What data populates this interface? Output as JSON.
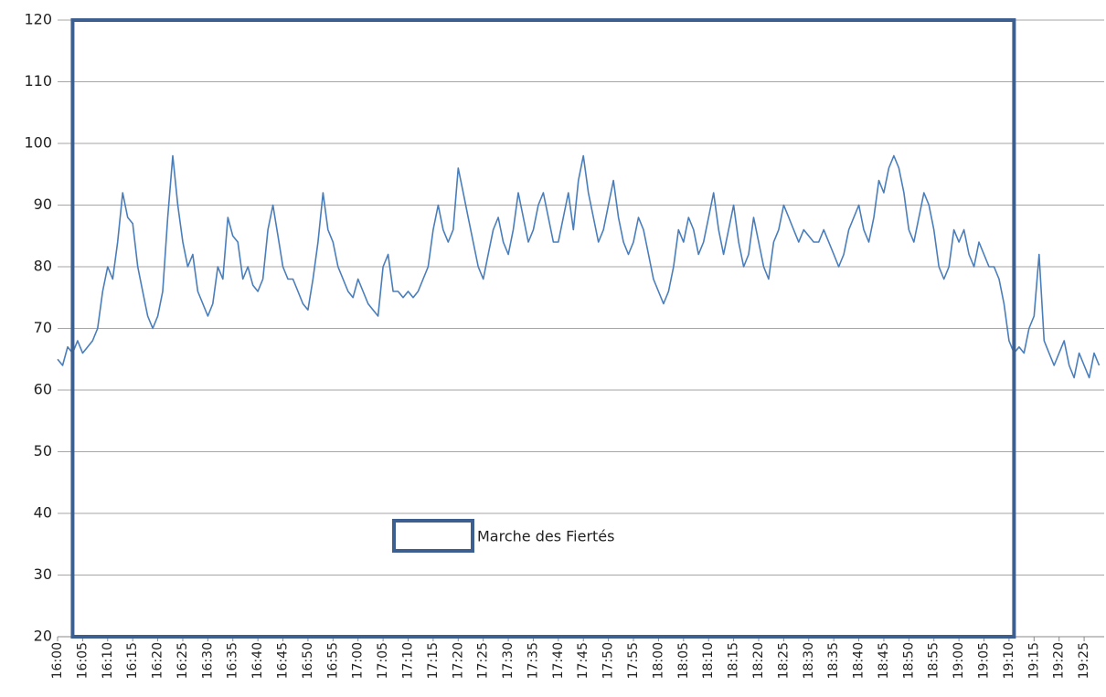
{
  "chart_data": {
    "type": "line",
    "x": [
      "16:00",
      "16:01",
      "16:02",
      "16:03",
      "16:04",
      "16:05",
      "16:06",
      "16:07",
      "16:08",
      "16:09",
      "16:10",
      "16:11",
      "16:12",
      "16:13",
      "16:14",
      "16:15",
      "16:16",
      "16:17",
      "16:18",
      "16:19",
      "16:20",
      "16:21",
      "16:22",
      "16:23",
      "16:24",
      "16:25",
      "16:26",
      "16:27",
      "16:28",
      "16:29",
      "16:30",
      "16:31",
      "16:32",
      "16:33",
      "16:34",
      "16:35",
      "16:36",
      "16:37",
      "16:38",
      "16:39",
      "16:40",
      "16:41",
      "16:42",
      "16:43",
      "16:44",
      "16:45",
      "16:46",
      "16:47",
      "16:48",
      "16:49",
      "16:50",
      "16:51",
      "16:52",
      "16:53",
      "16:54",
      "16:55",
      "16:56",
      "16:57",
      "16:58",
      "16:59",
      "17:00",
      "17:01",
      "17:02",
      "17:03",
      "17:04",
      "17:05",
      "17:06",
      "17:07",
      "17:08",
      "17:09",
      "17:10",
      "17:11",
      "17:12",
      "17:13",
      "17:14",
      "17:15",
      "17:16",
      "17:17",
      "17:18",
      "17:19",
      "17:20",
      "17:21",
      "17:22",
      "17:23",
      "17:24",
      "17:25",
      "17:26",
      "17:27",
      "17:28",
      "17:29",
      "17:30",
      "17:31",
      "17:32",
      "17:33",
      "17:34",
      "17:35",
      "17:36",
      "17:37",
      "17:38",
      "17:39",
      "17:40",
      "17:41",
      "17:42",
      "17:43",
      "17:44",
      "17:45",
      "17:46",
      "17:47",
      "17:48",
      "17:49",
      "17:50",
      "17:51",
      "17:52",
      "17:53",
      "17:54",
      "17:55",
      "17:56",
      "17:57",
      "17:58",
      "17:59",
      "18:00",
      "18:01",
      "18:02",
      "18:03",
      "18:04",
      "18:05",
      "18:06",
      "18:07",
      "18:08",
      "18:09",
      "18:10",
      "18:11",
      "18:12",
      "18:13",
      "18:14",
      "18:15",
      "18:16",
      "18:17",
      "18:18",
      "18:19",
      "18:20",
      "18:21",
      "18:22",
      "18:23",
      "18:24",
      "18:25",
      "18:26",
      "18:27",
      "18:28",
      "18:29",
      "18:30",
      "18:31",
      "18:32",
      "18:33",
      "18:34",
      "18:35",
      "18:36",
      "18:37",
      "18:38",
      "18:39",
      "18:40",
      "18:41",
      "18:42",
      "18:43",
      "18:44",
      "18:45",
      "18:46",
      "18:47",
      "18:48",
      "18:49",
      "18:50",
      "18:51",
      "18:52",
      "18:53",
      "18:54",
      "18:55",
      "18:56",
      "18:57",
      "18:58",
      "18:59",
      "19:00",
      "19:01",
      "19:02",
      "19:03",
      "19:04",
      "19:05",
      "19:06",
      "19:07",
      "19:08",
      "19:09",
      "19:10",
      "19:11",
      "19:12",
      "19:13",
      "19:14",
      "19:15",
      "19:16",
      "19:17",
      "19:18",
      "19:19",
      "19:20",
      "19:21",
      "19:22",
      "19:23",
      "19:24",
      "19:25",
      "19:26",
      "19:27",
      "19:28"
    ],
    "series": [
      {
        "color": "#4a7ebb",
        "values": [
          65,
          64,
          67,
          66,
          68,
          66,
          67,
          68,
          70,
          76,
          80,
          78,
          84,
          92,
          88,
          87,
          80,
          76,
          72,
          70,
          72,
          76,
          88,
          98,
          90,
          84,
          80,
          82,
          76,
          74,
          72,
          74,
          80,
          78,
          88,
          85,
          84,
          78,
          80,
          77,
          76,
          78,
          86,
          90,
          85,
          80,
          78,
          78,
          76,
          74,
          73,
          78,
          84,
          92,
          86,
          84,
          80,
          78,
          76,
          75,
          78,
          76,
          74,
          73,
          72,
          80,
          82,
          76,
          76,
          75,
          76,
          75,
          76,
          78,
          80,
          86,
          90,
          86,
          84,
          86,
          96,
          92,
          88,
          84,
          80,
          78,
          82,
          86,
          88,
          84,
          82,
          86,
          92,
          88,
          84,
          86,
          90,
          92,
          88,
          84,
          84,
          88,
          92,
          86,
          94,
          98,
          92,
          88,
          84,
          86,
          90,
          94,
          88,
          84,
          82,
          84,
          88,
          86,
          82,
          78,
          76,
          74,
          76,
          80,
          86,
          84,
          88,
          86,
          82,
          84,
          88,
          92,
          86,
          82,
          86,
          90,
          84,
          80,
          82,
          88,
          84,
          80,
          78,
          84,
          86,
          90,
          88,
          86,
          84,
          86,
          85,
          84,
          84,
          86,
          84,
          82,
          80,
          82,
          86,
          88,
          90,
          86,
          84,
          88,
          94,
          92,
          96,
          98,
          96,
          92,
          86,
          84,
          88,
          92,
          90,
          86,
          80,
          78,
          80,
          86,
          84,
          86,
          82,
          80,
          84,
          82,
          80,
          80,
          78,
          74,
          68,
          66,
          67,
          66,
          70,
          72,
          82,
          68,
          66,
          64,
          66,
          68,
          64,
          62,
          66,
          64,
          62,
          66,
          64
        ]
      }
    ],
    "xlim": [
      "16:00",
      "19:29"
    ],
    "xticks": [
      "16:00",
      "16:05",
      "16:10",
      "16:15",
      "16:20",
      "16:25",
      "16:30",
      "16:35",
      "16:40",
      "16:45",
      "16:50",
      "16:55",
      "17:00",
      "17:05",
      "17:10",
      "17:15",
      "17:20",
      "17:25",
      "17:30",
      "17:35",
      "17:40",
      "17:45",
      "17:50",
      "17:55",
      "18:00",
      "18:05",
      "18:10",
      "18:15",
      "18:20",
      "18:25",
      "18:30",
      "18:35",
      "18:40",
      "18:45",
      "18:50",
      "18:55",
      "19:00",
      "19:05",
      "19:10",
      "19:15",
      "19:20",
      "19:25"
    ],
    "ylim": [
      20,
      120
    ],
    "yticks": [
      20,
      30,
      40,
      50,
      60,
      70,
      80,
      90,
      100,
      110,
      120
    ],
    "grid": true,
    "annotation": {
      "label": "Marche des Fiertés",
      "start": "16:03",
      "end": "19:11",
      "color": "#3d5f8f"
    }
  }
}
